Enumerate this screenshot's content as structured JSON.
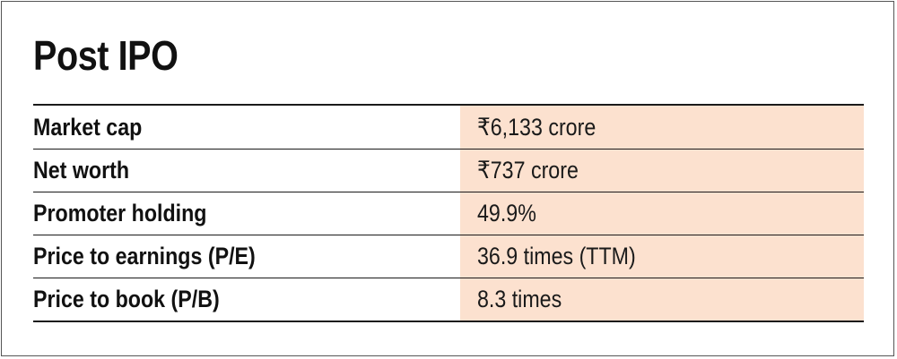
{
  "title": "Post IPO",
  "rows": [
    {
      "label": "Market cap",
      "value": "₹6,133 crore"
    },
    {
      "label": "Net worth",
      "value": "₹737 crore"
    },
    {
      "label": "Promoter holding",
      "value": "49.9%"
    },
    {
      "label": "Price to earnings (P/E)",
      "value": "36.9 times (TTM)"
    },
    {
      "label": "Price to book (P/B)",
      "value": "8.3 times"
    }
  ],
  "colors": {
    "value_background": "#fce1cf",
    "rule": "#1a1a1a"
  }
}
